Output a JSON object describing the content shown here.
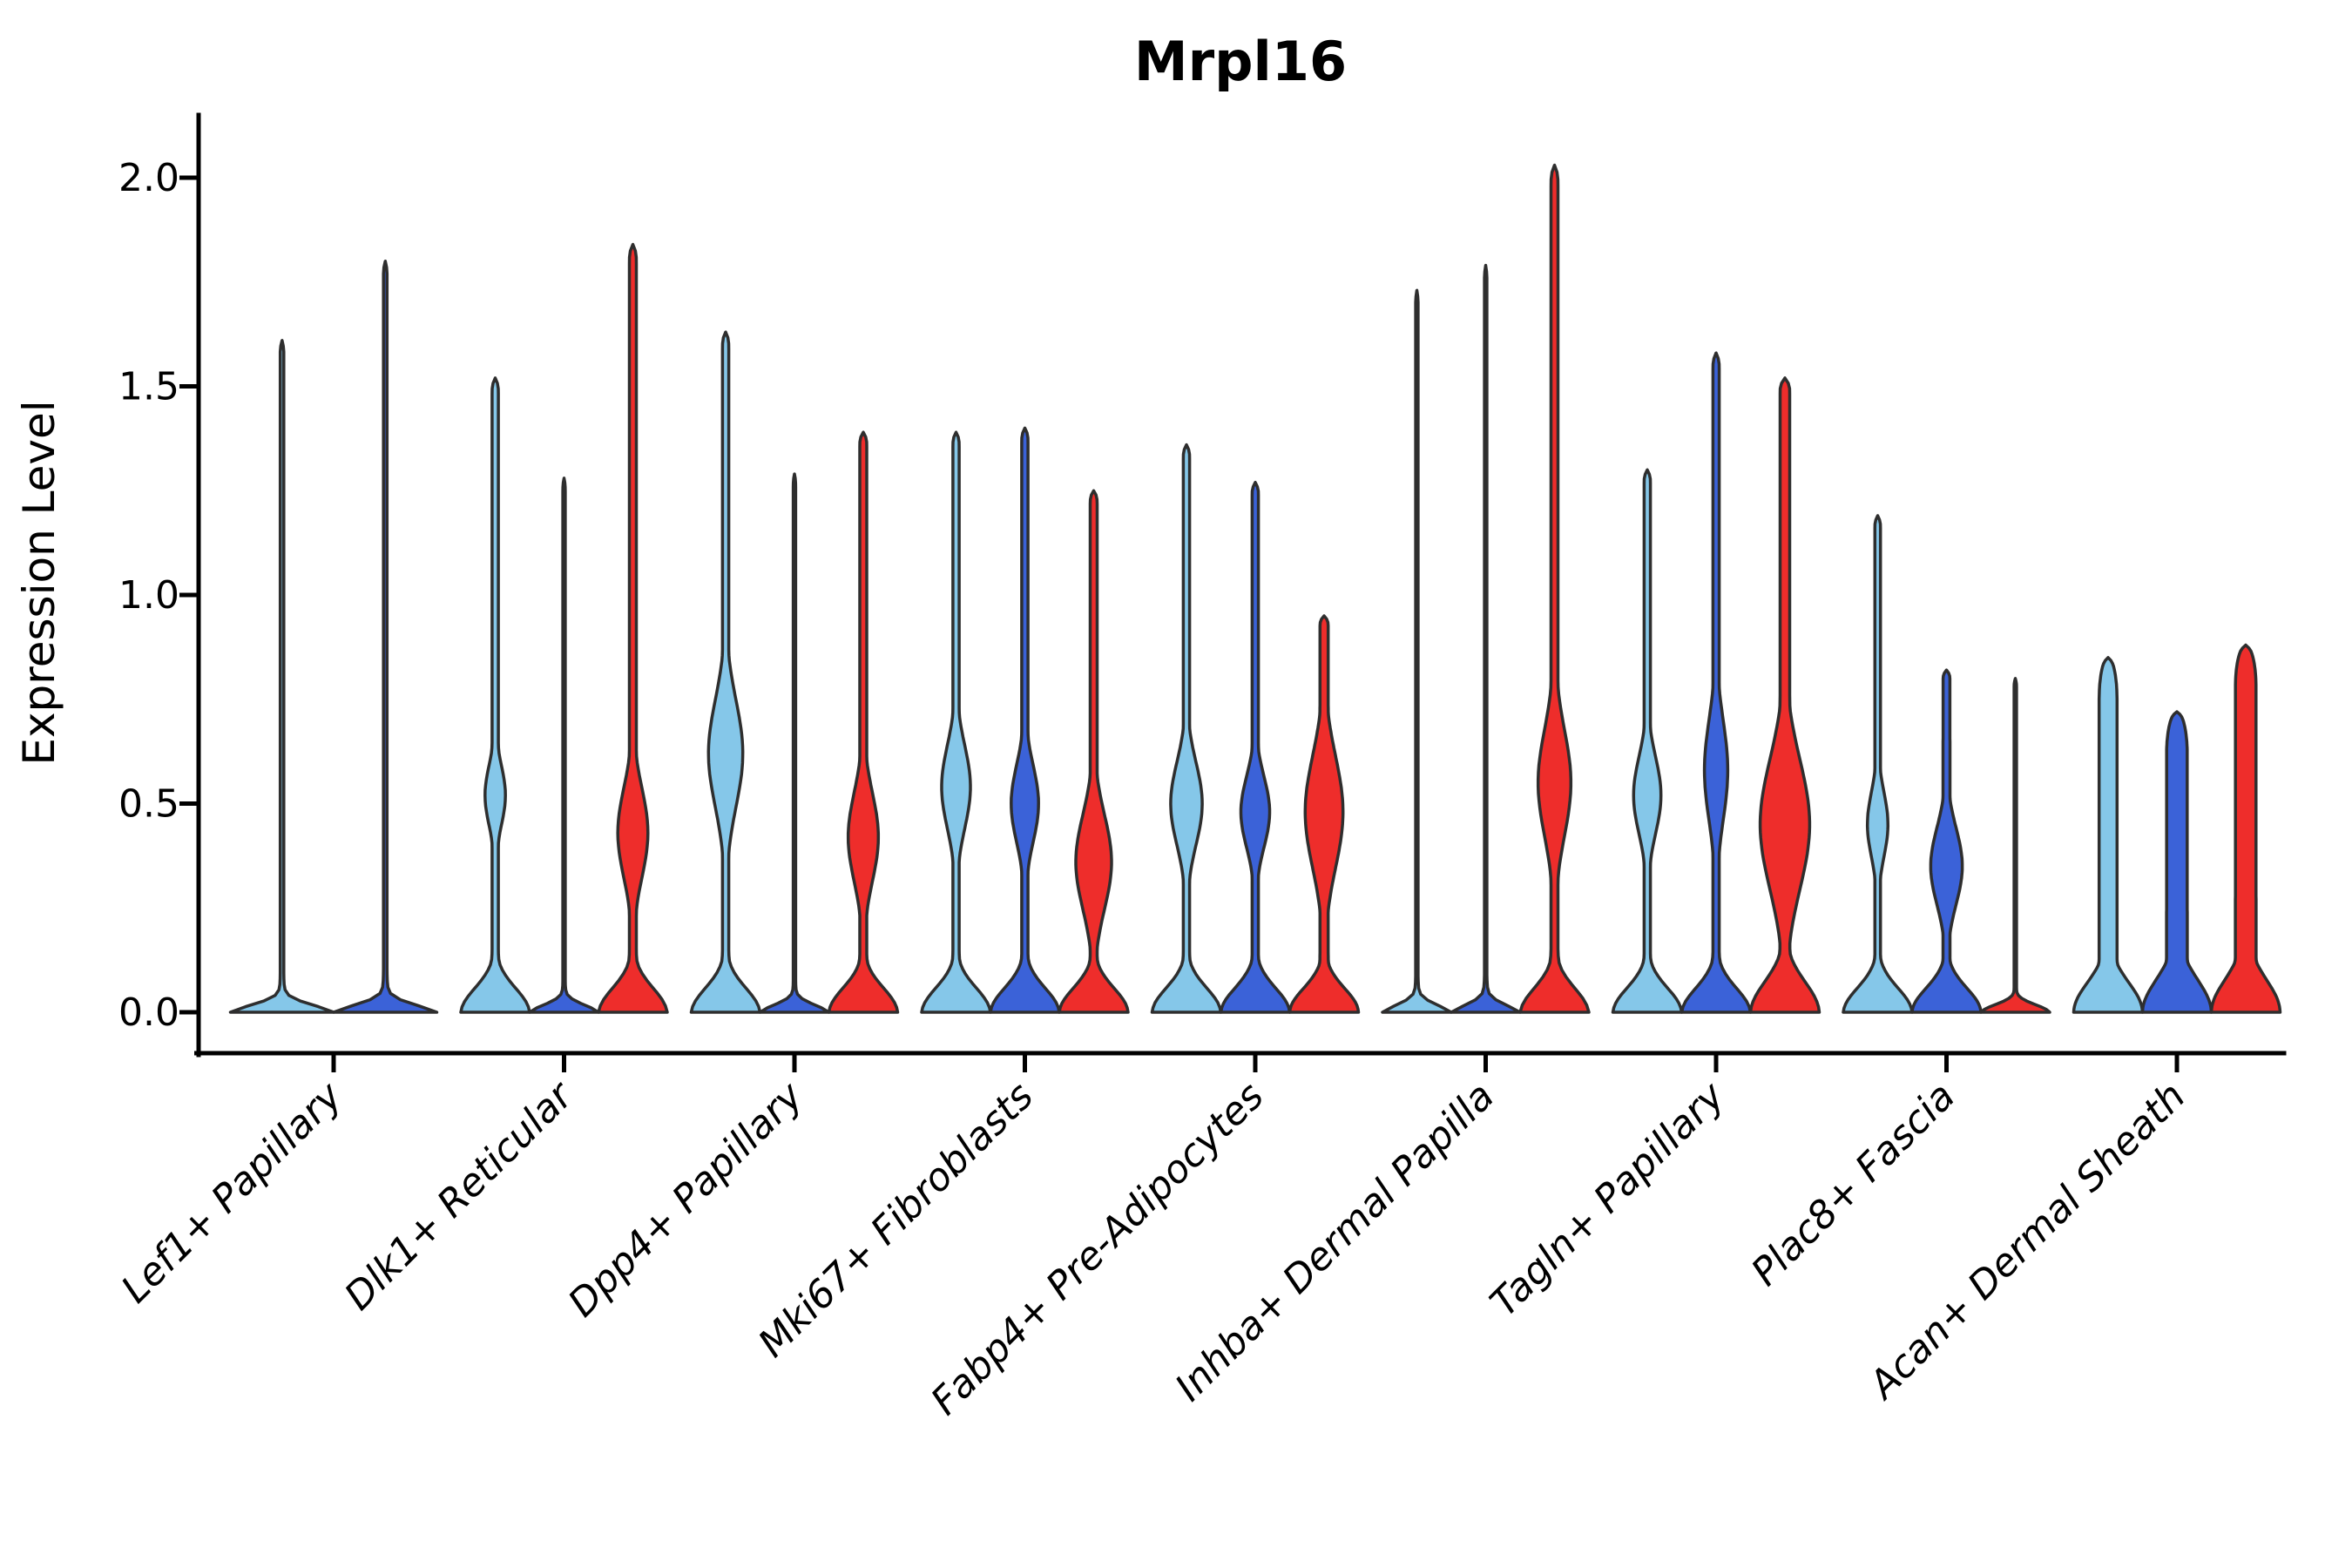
{
  "chart_data": {
    "type": "violin",
    "title": "Mrpl16",
    "ylabel": "Expression Level",
    "xlabel": "",
    "grid": false,
    "legend": "none",
    "background": "#ffffff",
    "outline_color": "#2e2e2e",
    "axis_color": "#000000",
    "ylim": [
      0.0,
      2.15
    ],
    "ytick_values": [
      0.0,
      0.5,
      1.0,
      1.5,
      2.0
    ],
    "ytick_labels": [
      "0.0",
      "0.5",
      "1.0",
      "1.5",
      "2.0"
    ],
    "series_palette": {
      "series1": "#85C7E9",
      "series2": "#3B62D8",
      "series3": "#EE2D2B"
    },
    "categories": [
      "Lef1+ Papillary",
      "Dlk1+ Reticular",
      "Dpp4+ Papillary",
      "Mki67+ Fibroblasts",
      "Fabp4+ Pre-Adipocytes",
      "Inhba+ Dermal Papilla",
      "Tagln+ Papillary",
      "Plac8+ Fascia",
      "Acan+ Dermal Sheath"
    ],
    "groups": [
      {
        "label": "Lef1+ Papillary",
        "violins": [
          {
            "series": "series1",
            "color": "#85C7E9",
            "max_expression": 1.61,
            "collapsed": true,
            "width_scale": 1.5
          },
          {
            "series": "series2",
            "color": "#3B62D8",
            "max_expression": 1.8,
            "collapsed": true,
            "width_scale": 1.5
          }
        ]
      },
      {
        "label": "Dlk1+ Reticular",
        "violins": [
          {
            "series": "series1",
            "color": "#85C7E9",
            "max_expression": 1.52,
            "collapsed": false,
            "stem_width": 0.09,
            "bulge": {
              "center": 0.52,
              "width": 0.3,
              "sigma": 0.1
            }
          },
          {
            "series": "series2",
            "color": "#3B62D8",
            "max_expression": 1.28,
            "collapsed": true
          },
          {
            "series": "series3",
            "color": "#EE2D2B",
            "max_expression": 1.84,
            "collapsed": false,
            "stem_width": 0.1,
            "bulge": {
              "center": 0.43,
              "width": 0.44,
              "sigma": 0.15
            }
          }
        ]
      },
      {
        "label": "Dpp4+ Papillary",
        "violins": [
          {
            "series": "series1",
            "color": "#85C7E9",
            "max_expression": 1.63,
            "collapsed": false,
            "stem_width": 0.09,
            "bulge": {
              "center": 0.62,
              "width": 0.5,
              "sigma": 0.18
            }
          },
          {
            "series": "series2",
            "color": "#3B62D8",
            "max_expression": 1.29,
            "collapsed": true
          },
          {
            "series": "series3",
            "color": "#EE2D2B",
            "max_expression": 1.39,
            "collapsed": false,
            "stem_width": 0.1,
            "bulge": {
              "center": 0.42,
              "width": 0.44,
              "sigma": 0.15
            }
          }
        ]
      },
      {
        "label": "Mki67+ Fibroblasts",
        "violins": [
          {
            "series": "series1",
            "color": "#85C7E9",
            "max_expression": 1.39,
            "collapsed": false,
            "stem_width": 0.09,
            "bulge": {
              "center": 0.54,
              "width": 0.42,
              "sigma": 0.14
            }
          },
          {
            "series": "series2",
            "color": "#3B62D8",
            "max_expression": 1.4,
            "collapsed": false,
            "stem_width": 0.09,
            "bulge": {
              "center": 0.5,
              "width": 0.4,
              "sigma": 0.13
            }
          },
          {
            "series": "series3",
            "color": "#EE2D2B",
            "max_expression": 1.25,
            "collapsed": false,
            "stem_width": 0.1,
            "bulge": {
              "center": 0.36,
              "width": 0.52,
              "sigma": 0.16
            }
          }
        ]
      },
      {
        "label": "Fabp4+ Pre-Adipocytes",
        "violins": [
          {
            "series": "series1",
            "color": "#85C7E9",
            "max_expression": 1.36,
            "collapsed": false,
            "stem_width": 0.09,
            "bulge": {
              "center": 0.5,
              "width": 0.46,
              "sigma": 0.14
            }
          },
          {
            "series": "series2",
            "color": "#3B62D8",
            "max_expression": 1.27,
            "collapsed": false,
            "stem_width": 0.09,
            "bulge": {
              "center": 0.48,
              "width": 0.42,
              "sigma": 0.12
            }
          },
          {
            "series": "series3",
            "color": "#EE2D2B",
            "max_expression": 0.95,
            "collapsed": false,
            "stem_width": 0.12,
            "bulge": {
              "center": 0.48,
              "width": 0.55,
              "sigma": 0.19
            }
          }
        ]
      },
      {
        "label": "Inhba+ Dermal Papilla",
        "violins": [
          {
            "series": "series1",
            "color": "#85C7E9",
            "max_expression": 1.73,
            "collapsed": true
          },
          {
            "series": "series2",
            "color": "#3B62D8",
            "max_expression": 1.79,
            "collapsed": true
          },
          {
            "series": "series3",
            "color": "#EE2D2B",
            "max_expression": 2.03,
            "collapsed": false,
            "stem_width": 0.1,
            "bulge": {
              "center": 0.55,
              "width": 0.48,
              "sigma": 0.18
            }
          }
        ]
      },
      {
        "label": "Tagln+ Papillary",
        "violins": [
          {
            "series": "series1",
            "color": "#85C7E9",
            "max_expression": 1.3,
            "collapsed": false,
            "stem_width": 0.09,
            "bulge": {
              "center": 0.52,
              "width": 0.4,
              "sigma": 0.13
            }
          },
          {
            "series": "series2",
            "color": "#3B62D8",
            "max_expression": 1.58,
            "collapsed": false,
            "stem_width": 0.09,
            "bulge": {
              "center": 0.58,
              "width": 0.34,
              "sigma": 0.17
            }
          },
          {
            "series": "series3",
            "color": "#EE2D2B",
            "max_expression": 1.52,
            "collapsed": false,
            "stem_width": 0.14,
            "pancake_sigma": 0.1,
            "bulge": {
              "center": 0.45,
              "width": 0.72,
              "sigma": 0.22
            }
          }
        ]
      },
      {
        "label": "Plac8+ Fascia",
        "violins": [
          {
            "series": "series1",
            "color": "#85C7E9",
            "max_expression": 1.19,
            "collapsed": false,
            "stem_width": 0.08,
            "bulge": {
              "center": 0.45,
              "width": 0.3,
              "sigma": 0.11
            }
          },
          {
            "series": "series2",
            "color": "#3B62D8",
            "max_expression": 0.82,
            "collapsed": false,
            "stem_width": 0.1,
            "bulge": {
              "center": 0.35,
              "width": 0.46,
              "sigma": 0.13
            }
          },
          {
            "series": "series3",
            "color": "#EE2D2B",
            "max_expression": 0.8,
            "collapsed": true
          }
        ]
      },
      {
        "label": "Acan+ Dermal Sheath",
        "violins": [
          {
            "series": "series1",
            "color": "#85C7E9",
            "max_expression": 0.85,
            "collapsed": false,
            "cap": "round",
            "stem_width": 0.26,
            "pancake_sigma": 0.1,
            "bulge": {
              "center": 0.28,
              "width": 0.18,
              "sigma": 0.28
            }
          },
          {
            "series": "series2",
            "color": "#3B62D8",
            "max_expression": 0.72,
            "collapsed": false,
            "cap": "round",
            "stem_width": 0.3,
            "pancake_sigma": 0.11,
            "bulge": {
              "center": 0.26,
              "width": 0.18,
              "sigma": 0.26
            }
          },
          {
            "series": "series3",
            "color": "#EE2D2B",
            "max_expression": 0.88,
            "collapsed": false,
            "cap": "round",
            "stem_width": 0.3,
            "pancake_sigma": 0.11,
            "bulge": {
              "center": 0.4,
              "width": 0.22,
              "sigma": 0.26
            }
          }
        ]
      }
    ]
  }
}
